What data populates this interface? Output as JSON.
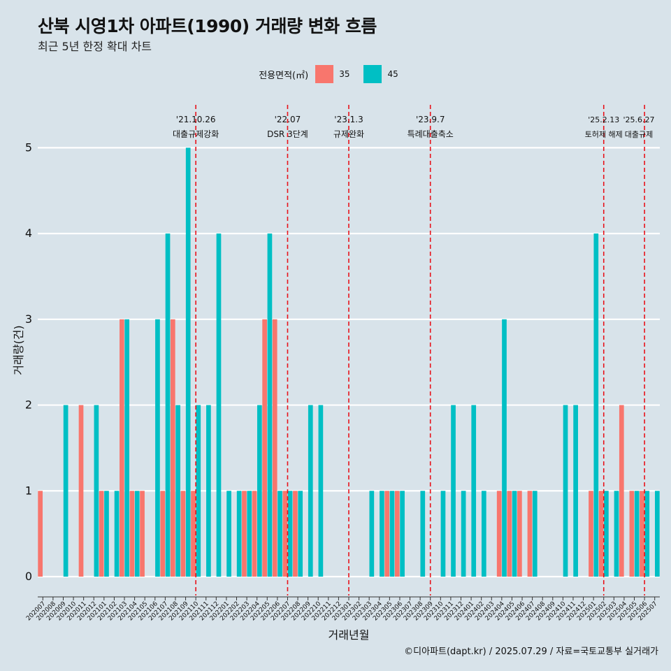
{
  "header": {
    "title": "산북 시영1차 아파트(1990) 거래량 변화 흐름",
    "subtitle": "최근 5년 한정 확대 차트"
  },
  "legend": {
    "title": "전용면적(㎡)",
    "items": [
      {
        "label": "35",
        "color": "#F8766D"
      },
      {
        "label": "45",
        "color": "#00BFC4"
      }
    ]
  },
  "caption": "©디아파트(dapt.kr) / 2025.07.29 / 자료=국토교통부 실거래가",
  "chart_data": {
    "type": "bar",
    "title": "산북 시영1차 아파트(1990) 거래량 변화 흐름",
    "xlabel": "거래년월",
    "ylabel": "거래량(건)",
    "ylim": [
      -0.22,
      5.5
    ],
    "yticks": [
      0,
      1,
      2,
      3,
      4,
      5
    ],
    "categories": [
      "202007",
      "202008",
      "202009",
      "202010",
      "202011",
      "202012",
      "202101",
      "202102",
      "202103",
      "202104",
      "202105",
      "202106",
      "202107",
      "202108",
      "202109",
      "202110",
      "202111",
      "202112",
      "202201",
      "202202",
      "202203",
      "202204",
      "202205",
      "202206",
      "202207",
      "202208",
      "202209",
      "202210",
      "202211",
      "202212",
      "202301",
      "202302",
      "202303",
      "202304",
      "202305",
      "202306",
      "202307",
      "202308",
      "202309",
      "202310",
      "202311",
      "202312",
      "202401",
      "202402",
      "202403",
      "202404",
      "202405",
      "202406",
      "202407",
      "202408",
      "202409",
      "202410",
      "202411",
      "202412",
      "202501",
      "202502",
      "202503",
      "202504",
      "202505",
      "202506",
      "202507"
    ],
    "series": [
      {
        "name": "35",
        "values": [
          1,
          0,
          0,
          0,
          2,
          0,
          1,
          0,
          3,
          1,
          1,
          0,
          1,
          3,
          1,
          1,
          0,
          0,
          0,
          0,
          1,
          1,
          3,
          3,
          1,
          1,
          0,
          0,
          0,
          0,
          0,
          0,
          0,
          0,
          1,
          1,
          0,
          0,
          0,
          0,
          0,
          0,
          0,
          0,
          0,
          1,
          1,
          1,
          1,
          0,
          0,
          0,
          0,
          0,
          1,
          1,
          0,
          2,
          1,
          1,
          0
        ]
      },
      {
        "name": "45",
        "values": [
          0,
          0,
          2,
          0,
          0,
          2,
          1,
          1,
          3,
          1,
          0,
          3,
          4,
          2,
          5,
          2,
          2,
          4,
          1,
          1,
          1,
          2,
          4,
          1,
          1,
          1,
          2,
          2,
          0,
          0,
          0,
          0,
          1,
          1,
          1,
          1,
          0,
          1,
          0,
          1,
          2,
          1,
          2,
          1,
          0,
          3,
          1,
          0,
          1,
          0,
          0,
          2,
          2,
          0,
          4,
          1,
          1,
          0,
          1,
          1,
          1
        ]
      }
    ],
    "annotations": [
      {
        "date": "'21.10.26",
        "label": "대출규제강화",
        "month": "202110"
      },
      {
        "date": "'22.07",
        "label": "DSR 3단계",
        "month": "202207"
      },
      {
        "date": "'23.1.3",
        "label": "규제완화",
        "month": "202301"
      },
      {
        "date": "'23.9.7",
        "label": "특례대출축소",
        "month": "202309"
      },
      {
        "date": "'25.2.13",
        "label": "토허제 해제",
        "month": "202502"
      },
      {
        "date": "'25.6.27",
        "label": "대출규제",
        "month": "202506"
      }
    ]
  }
}
